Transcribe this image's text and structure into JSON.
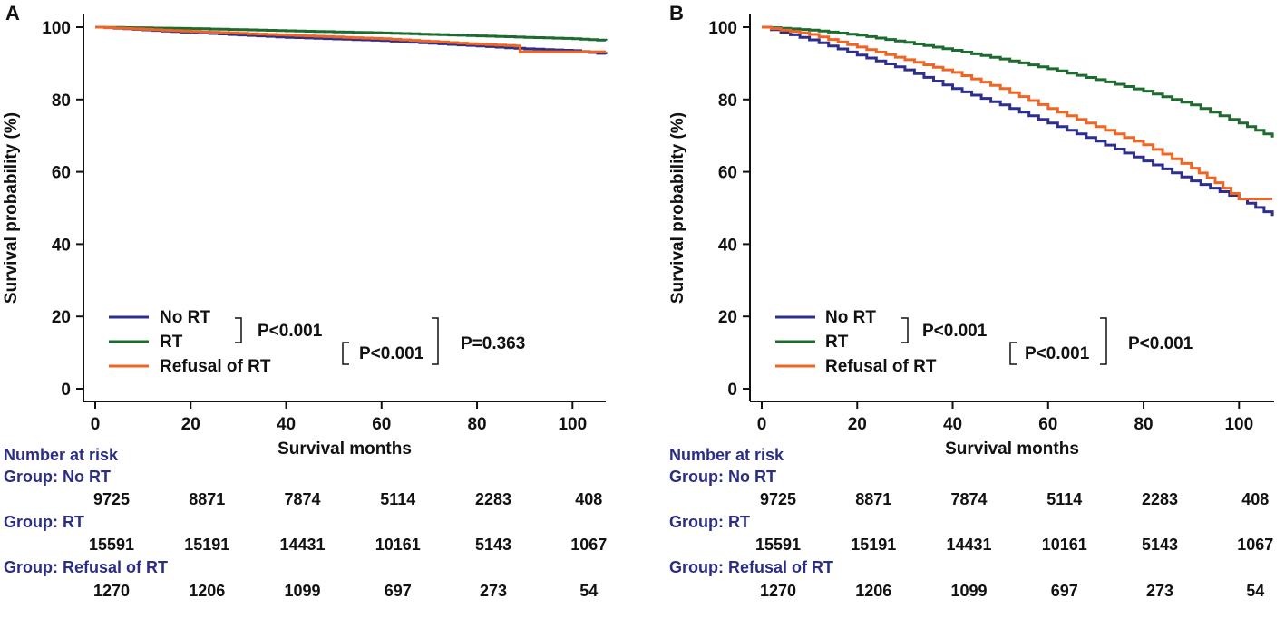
{
  "chart_data": [
    {
      "type": "line",
      "panel_label": "A",
      "xlabel": "Survival months",
      "ylabel": "Survival probability (%)",
      "xlim": [
        0,
        108
      ],
      "ylim": [
        0,
        100
      ],
      "xticks": [
        0,
        20,
        40,
        60,
        80,
        100
      ],
      "yticks": [
        0,
        20,
        40,
        60,
        80,
        100
      ],
      "series": [
        {
          "name": "No RT",
          "color": "#2d2f8f",
          "x": [
            0,
            20,
            40,
            60,
            80,
            90,
            100,
            107
          ],
          "y": [
            100,
            98.5,
            97.2,
            96.3,
            94.8,
            94.0,
            93.5,
            92.5
          ]
        },
        {
          "name": "RT",
          "color": "#1d6b2e",
          "x": [
            0,
            20,
            40,
            60,
            80,
            90,
            100,
            107
          ],
          "y": [
            100,
            99.6,
            99.0,
            98.4,
            97.6,
            97.2,
            96.8,
            96.3
          ]
        },
        {
          "name": "Refusal of RT",
          "color": "#ef6524",
          "x": [
            0,
            20,
            40,
            60,
            80,
            88,
            89,
            100,
            107
          ],
          "y": [
            100,
            98.8,
            97.8,
            96.8,
            95.3,
            94.8,
            93.2,
            93.2,
            93.2
          ]
        }
      ],
      "legend": [
        "No RT",
        "RT",
        "Refusal of RT"
      ],
      "pvalues": [
        "P<0.001",
        "P<0.001",
        "P=0.363"
      ],
      "risk_table": {
        "title": "Number at risk",
        "groups": [
          {
            "label": "Group: No RT",
            "values": [
              "9725",
              "8871",
              "7874",
              "5114",
              "2283",
              "408"
            ]
          },
          {
            "label": "Group: RT",
            "values": [
              "15591",
              "15191",
              "14431",
              "10161",
              "5143",
              "1067"
            ]
          },
          {
            "label": "Group: Refusal of RT",
            "values": [
              "1270",
              "1206",
              "1099",
              "697",
              "273",
              "54"
            ]
          }
        ]
      }
    },
    {
      "type": "line",
      "panel_label": "B",
      "xlabel": "Survival months",
      "ylabel": "Survival probability (%)",
      "xlim": [
        0,
        108
      ],
      "ylim": [
        0,
        100
      ],
      "xticks": [
        0,
        20,
        40,
        60,
        80,
        100
      ],
      "yticks": [
        0,
        20,
        40,
        60,
        80,
        100
      ],
      "series": [
        {
          "name": "No RT",
          "color": "#2d2f8f",
          "x": [
            0,
            10,
            20,
            30,
            40,
            50,
            60,
            70,
            80,
            90,
            100,
            107
          ],
          "y": [
            100,
            96.5,
            92.3,
            88.2,
            83.0,
            78.5,
            73.5,
            68.5,
            63.0,
            57.5,
            52.5,
            47.8
          ]
        },
        {
          "name": "RT",
          "color": "#1d6b2e",
          "x": [
            0,
            10,
            20,
            30,
            40,
            50,
            60,
            70,
            80,
            90,
            100,
            107
          ],
          "y": [
            100,
            99.2,
            97.8,
            95.8,
            93.6,
            91.2,
            88.5,
            85.5,
            82.3,
            78.5,
            73.5,
            69.5
          ]
        },
        {
          "name": "Refusal of RT",
          "color": "#ef6524",
          "x": [
            0,
            10,
            20,
            30,
            40,
            50,
            60,
            70,
            80,
            90,
            95,
            100,
            107
          ],
          "y": [
            100,
            98.0,
            94.5,
            91.0,
            87.5,
            83.0,
            77.5,
            72.5,
            67.5,
            61.0,
            57.0,
            52.5,
            52.5
          ]
        }
      ],
      "legend": [
        "No RT",
        "RT",
        "Refusal of RT"
      ],
      "pvalues": [
        "P<0.001",
        "P<0.001",
        "P<0.001"
      ],
      "risk_table": {
        "title": "Number at risk",
        "groups": [
          {
            "label": "Group: No RT",
            "values": [
              "9725",
              "8871",
              "7874",
              "5114",
              "2283",
              "408"
            ]
          },
          {
            "label": "Group: RT",
            "values": [
              "15591",
              "15191",
              "14431",
              "10161",
              "5143",
              "1067"
            ]
          },
          {
            "label": "Group: Refusal of RT",
            "values": [
              "1270",
              "1206",
              "1099",
              "697",
              "273",
              "54"
            ]
          }
        ]
      }
    }
  ]
}
